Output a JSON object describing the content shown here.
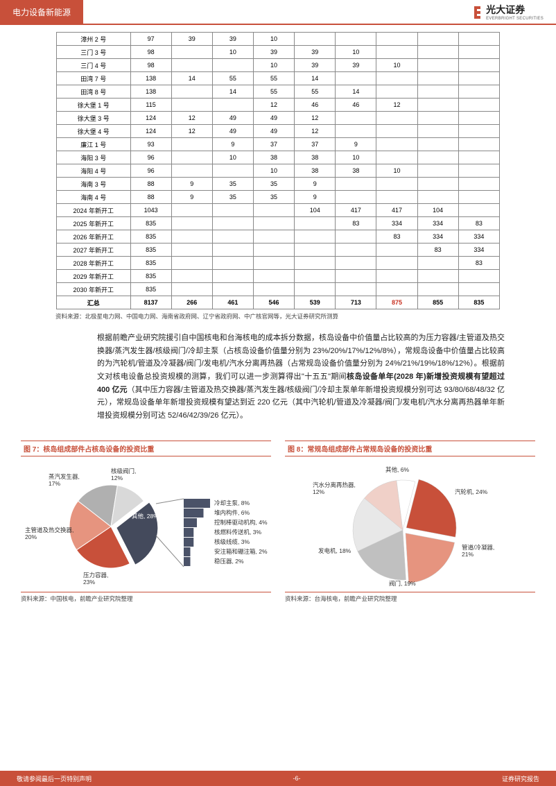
{
  "header": {
    "category": "电力设备新能源",
    "brand_cn": "光大证券",
    "brand_en": "EVERBRIGHT SECURITIES"
  },
  "table": {
    "rows": [
      {
        "name": "漳州 2 号",
        "v": [
          "97",
          "39",
          "39",
          "10",
          "",
          "",
          "",
          "",
          ""
        ]
      },
      {
        "name": "三门 3 号",
        "v": [
          "98",
          "",
          "10",
          "39",
          "39",
          "10",
          "",
          "",
          ""
        ]
      },
      {
        "name": "三门 4 号",
        "v": [
          "98",
          "",
          "",
          "10",
          "39",
          "39",
          "10",
          "",
          ""
        ]
      },
      {
        "name": "田湾 7 号",
        "v": [
          "138",
          "14",
          "55",
          "55",
          "14",
          "",
          "",
          "",
          ""
        ]
      },
      {
        "name": "田湾 8 号",
        "v": [
          "138",
          "",
          "14",
          "55",
          "55",
          "14",
          "",
          "",
          ""
        ]
      },
      {
        "name": "徐大堡 1 号",
        "v": [
          "115",
          "",
          "",
          "12",
          "46",
          "46",
          "12",
          "",
          ""
        ]
      },
      {
        "name": "徐大堡 3 号",
        "v": [
          "124",
          "12",
          "49",
          "49",
          "12",
          "",
          "",
          "",
          ""
        ]
      },
      {
        "name": "徐大堡 4 号",
        "v": [
          "124",
          "12",
          "49",
          "49",
          "12",
          "",
          "",
          "",
          ""
        ]
      },
      {
        "name": "廉江 1 号",
        "v": [
          "93",
          "",
          "9",
          "37",
          "37",
          "9",
          "",
          "",
          ""
        ]
      },
      {
        "name": "海阳 3 号",
        "v": [
          "96",
          "",
          "10",
          "38",
          "38",
          "10",
          "",
          "",
          ""
        ]
      },
      {
        "name": "海阳 4 号",
        "v": [
          "96",
          "",
          "",
          "10",
          "38",
          "38",
          "10",
          "",
          ""
        ]
      },
      {
        "name": "海南 3 号",
        "v": [
          "88",
          "9",
          "35",
          "35",
          "9",
          "",
          "",
          "",
          ""
        ]
      },
      {
        "name": "海南 4 号",
        "v": [
          "88",
          "9",
          "35",
          "35",
          "9",
          "",
          "",
          "",
          ""
        ]
      },
      {
        "name": "2024 年新开工",
        "v": [
          "1043",
          "",
          "",
          "",
          "104",
          "417",
          "417",
          "104",
          ""
        ]
      },
      {
        "name": "2025 年新开工",
        "v": [
          "835",
          "",
          "",
          "",
          "",
          "83",
          "334",
          "334",
          "83"
        ]
      },
      {
        "name": "2026 年新开工",
        "v": [
          "835",
          "",
          "",
          "",
          "",
          "",
          "83",
          "334",
          "334"
        ]
      },
      {
        "name": "2027 年新开工",
        "v": [
          "835",
          "",
          "",
          "",
          "",
          "",
          "",
          "83",
          "334"
        ]
      },
      {
        "name": "2028 年新开工",
        "v": [
          "835",
          "",
          "",
          "",
          "",
          "",
          "",
          "",
          "83"
        ]
      },
      {
        "name": "2029 年新开工",
        "v": [
          "835",
          "",
          "",
          "",
          "",
          "",
          "",
          "",
          ""
        ]
      },
      {
        "name": "2030 年新开工",
        "v": [
          "835",
          "",
          "",
          "",
          "",
          "",
          "",
          "",
          ""
        ]
      }
    ],
    "sum": {
      "name": "汇总",
      "v": [
        "8137",
        "266",
        "461",
        "546",
        "539",
        "713",
        "875",
        "855",
        "835"
      ]
    },
    "highlight_col": 6,
    "source": "资料来源：北极星电力网、中国电力网、海南省政府网、辽宁省政府网、中广核官网等，光大证券研究所测算"
  },
  "paragraph": {
    "p1": "根据前瞻产业研究院援引自中国核电和台海核电的成本拆分数据，核岛设备中价值量占比较高的为压力容器/主管道及热交换器/蒸汽发生器/核级阀门/冷却主泵（占核岛设备价值量分别为 23%/20%/17%/12%/8%），常规岛设备中价值量占比较高的为汽轮机/管道及冷凝器/阀门/发电机/汽水分离再热器（占常规岛设备价值量分别为 24%/21%/19%/18%/12%）。根据前文对核电设备总投资规模的测算，我们可以进一步测算得出\"十五五\"期间",
    "bold": "核岛设备单年(2028 年)新增投资规模有望超过 400 亿元",
    "p2": "（其中压力容器/主管道及热交换器/蒸汽发生器/核级阀门/冷却主泵单年新增投资规模分别可达 93/80/68/48/32 亿元），常规岛设备单年新增投资规模有望达到近 220 亿元（其中汽轮机/管道及冷凝器/阀门/发电机/汽水分离再热器单年新增投资规模分别可达 52/46/42/39/26 亿元）。"
  },
  "chart7": {
    "title": "图 7：核岛组成部件占核岛设备的投资比重",
    "source": "资料来源：中国核电，前瞻产业研究院整理",
    "type": "pie",
    "slices": [
      {
        "label": "压力容器",
        "pct": 23,
        "color": "#c8503a",
        "text": "压力容器,\n23%"
      },
      {
        "label": "主管道及热交换器",
        "pct": 20,
        "color": "#e6947f",
        "text": "主管道及热交换器,\n20%"
      },
      {
        "label": "蒸汽发生器",
        "pct": 17,
        "color": "#b0b0b0",
        "text": "蒸汽发生器,\n17%"
      },
      {
        "label": "核级阀门",
        "pct": 12,
        "color": "#d9d9d9",
        "text": "核级阀门,\n12%"
      },
      {
        "label": "冷却主泵",
        "pct": 8,
        "color": "#b8d4e3",
        "text": "冷却主泵,\n8%"
      },
      {
        "label": "堆内构件",
        "pct": 6,
        "color": "#b8d4e3",
        "text": "堆内构件, 6%"
      },
      {
        "label": "控制棒驱动机构",
        "pct": 4,
        "color": "#b8d4e3",
        "text": "控制棒驱动机构, 4%"
      },
      {
        "label": "核燃料传送机",
        "pct": 3,
        "color": "#b8d4e3",
        "text": "核燃料传送机, 3%"
      },
      {
        "label": "核级线缆",
        "pct": 3,
        "color": "#b8d4e3",
        "text": "核级线缆, 3%"
      },
      {
        "label": "安注箱和硼注箱",
        "pct": 2,
        "color": "#b8d4e3",
        "text": "安注箱和硼注箱, 2%"
      },
      {
        "label": "稳压器",
        "pct": 2,
        "color": "#b8d4e3",
        "text": "稳压器, 2%"
      }
    ],
    "other_label": "其他, 28%",
    "other_color": "#444a5c"
  },
  "chart8": {
    "title": "图 8：常规岛组成部件占常规岛设备的投资比重",
    "source": "资料来源：台海核电，前瞻产业研究院整理",
    "type": "pie",
    "slices": [
      {
        "label": "汽轮机",
        "pct": 24,
        "color": "#c8503a",
        "text": "汽轮机, 24%"
      },
      {
        "label": "管道/冷凝器",
        "pct": 21,
        "color": "#e6947f",
        "text": "管道/冷凝器,\n21%"
      },
      {
        "label": "阀门",
        "pct": 19,
        "color": "#c0c0c0",
        "text": "阀门, 19%"
      },
      {
        "label": "发电机",
        "pct": 18,
        "color": "#e8e8e8",
        "text": "发电机, 18%"
      },
      {
        "label": "汽水分离再热器",
        "pct": 12,
        "color": "#f0d0c8",
        "text": "汽水分离再热器,\n12%"
      },
      {
        "label": "其他",
        "pct": 6,
        "color": "#ffffff",
        "text": "其他, 6%"
      }
    ]
  },
  "footer": {
    "left": "敬请参阅最后一页特别声明",
    "center": "-6-",
    "right": "证券研究报告"
  }
}
